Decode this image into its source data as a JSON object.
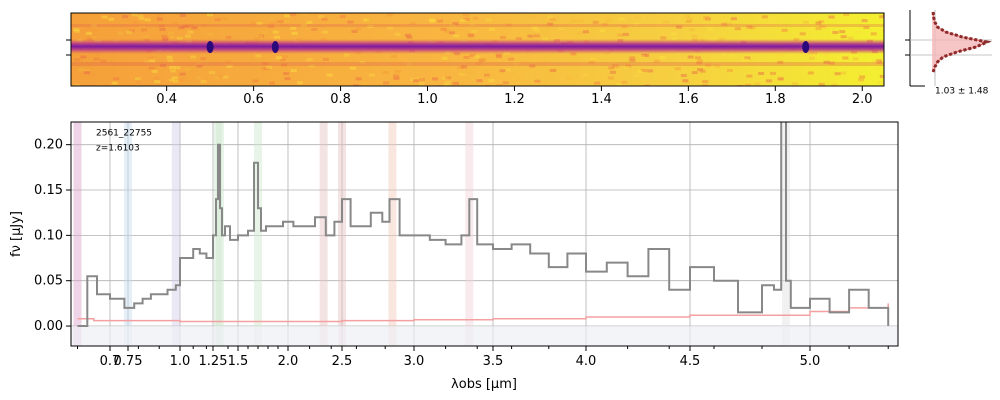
{
  "chart_data": [
    {
      "type": "heatmap",
      "name": "2D spectrum",
      "colormap": "plasma",
      "xlim": [
        0.18,
        2.05
      ],
      "x_ticks": [
        0.4,
        0.6,
        0.8,
        1.0,
        1.2,
        1.4,
        1.6,
        1.8,
        2.0
      ],
      "x_tick_labels": [
        "0.4",
        "0.6",
        "0.8",
        "1.0",
        "1.2",
        "1.4",
        "1.6",
        "1.8",
        "2.0"
      ],
      "trace_features_um": [
        0.5,
        0.65,
        1.87
      ]
    },
    {
      "type": "line",
      "name": "cross-dispersion profile",
      "annotation": "1.03 ± 1.48",
      "profile": [
        0.02,
        0.03,
        0.05,
        0.1,
        0.25,
        0.55,
        1.0,
        0.8,
        0.45,
        0.2,
        0.1,
        0.05,
        0.02
      ],
      "series_colors": {
        "fill": "#f4b8b8",
        "line": "#8b2a2a",
        "model": "#e06060"
      }
    },
    {
      "type": "line",
      "title": "",
      "object_id": "2561_22755",
      "redshift_label": "z=1.6103",
      "xlabel": "λobs [μm]",
      "ylabel": "fν [μJy]",
      "xlim": [
        0.58,
        5.45
      ],
      "ylim": [
        -0.022,
        0.225
      ],
      "x_ticks": [
        0.7,
        0.75,
        1.0,
        1.25,
        1.5,
        2.0,
        2.5,
        3.0,
        3.5,
        4.0,
        4.5,
        5.0
      ],
      "x_tick_labels": [
        "0.7",
        "0.75",
        "1.0",
        "1.25",
        "1.5",
        "2.0",
        "2.5",
        "3.0",
        "3.5",
        "4.0",
        "4.5",
        "5.0"
      ],
      "y_ticks": [
        0.0,
        0.05,
        0.1,
        0.15,
        0.2
      ],
      "y_tick_labels": [
        "0.00",
        "0.05",
        "0.10",
        "0.15",
        "0.20"
      ],
      "grid": true,
      "emission_lines_um": [
        {
          "x": 0.6,
          "color": "#d9a0c8"
        },
        {
          "x": 0.75,
          "color": "#c8dcf0"
        },
        {
          "x": 0.98,
          "color": "#d0cce8"
        },
        {
          "x": 1.3,
          "color": "#cfe6cf"
        },
        {
          "x": 1.32,
          "color": "#cfe6cf"
        },
        {
          "x": 1.7,
          "color": "#cfe6cf"
        },
        {
          "x": 2.33,
          "color": "#e6c0c0"
        },
        {
          "x": 2.5,
          "color": "#e6c0c0"
        },
        {
          "x": 2.85,
          "color": "#f0c8b8"
        },
        {
          "x": 3.35,
          "color": "#f0d0d8"
        },
        {
          "x": 4.9,
          "color": "#e0e0e0"
        }
      ],
      "series": [
        {
          "name": "flux",
          "color": "#888888",
          "x": [
            0.6,
            0.63,
            0.66,
            0.7,
            0.74,
            0.78,
            0.82,
            0.86,
            0.9,
            0.94,
            0.98,
            1.0,
            1.05,
            1.1,
            1.15,
            1.2,
            1.25,
            1.28,
            1.3,
            1.32,
            1.34,
            1.37,
            1.42,
            1.5,
            1.6,
            1.66,
            1.7,
            1.73,
            1.78,
            1.85,
            1.95,
            2.05,
            2.15,
            2.25,
            2.35,
            2.43,
            2.5,
            2.56,
            2.62,
            2.7,
            2.78,
            2.83,
            2.9,
            3.0,
            3.1,
            3.2,
            3.3,
            3.35,
            3.4,
            3.5,
            3.6,
            3.7,
            3.8,
            3.9,
            4.0,
            4.1,
            4.2,
            4.3,
            4.4,
            4.5,
            4.6,
            4.7,
            4.8,
            4.85,
            4.88,
            4.9,
            4.92,
            5.0,
            5.1,
            5.2,
            5.3,
            5.4
          ],
          "values": [
            0.0,
            0.055,
            0.035,
            0.03,
            0.02,
            0.025,
            0.03,
            0.035,
            0.035,
            0.04,
            0.045,
            0.075,
            0.075,
            0.085,
            0.08,
            0.075,
            0.1,
            0.14,
            0.2,
            0.13,
            0.1,
            0.11,
            0.095,
            0.1,
            0.105,
            0.18,
            0.13,
            0.105,
            0.11,
            0.11,
            0.115,
            0.11,
            0.11,
            0.12,
            0.1,
            0.115,
            0.14,
            0.11,
            0.11,
            0.125,
            0.115,
            0.14,
            0.1,
            0.1,
            0.095,
            0.09,
            0.1,
            0.14,
            0.09,
            0.085,
            0.09,
            0.08,
            0.065,
            0.08,
            0.06,
            0.07,
            0.055,
            0.085,
            0.04,
            0.065,
            0.05,
            0.015,
            0.045,
            0.04,
            0.23,
            0.05,
            0.02,
            0.03,
            0.015,
            0.04,
            0.02,
            0.0
          ]
        },
        {
          "name": "error",
          "color": "#f4a0a0",
          "x": [
            0.6,
            0.65,
            1.0,
            1.5,
            2.0,
            2.5,
            3.0,
            3.5,
            4.0,
            4.5,
            5.0,
            5.2,
            5.4
          ],
          "values": [
            0.008,
            0.006,
            0.005,
            0.005,
            0.005,
            0.006,
            0.007,
            0.008,
            0.01,
            0.012,
            0.016,
            0.02,
            0.025
          ]
        }
      ]
    }
  ]
}
